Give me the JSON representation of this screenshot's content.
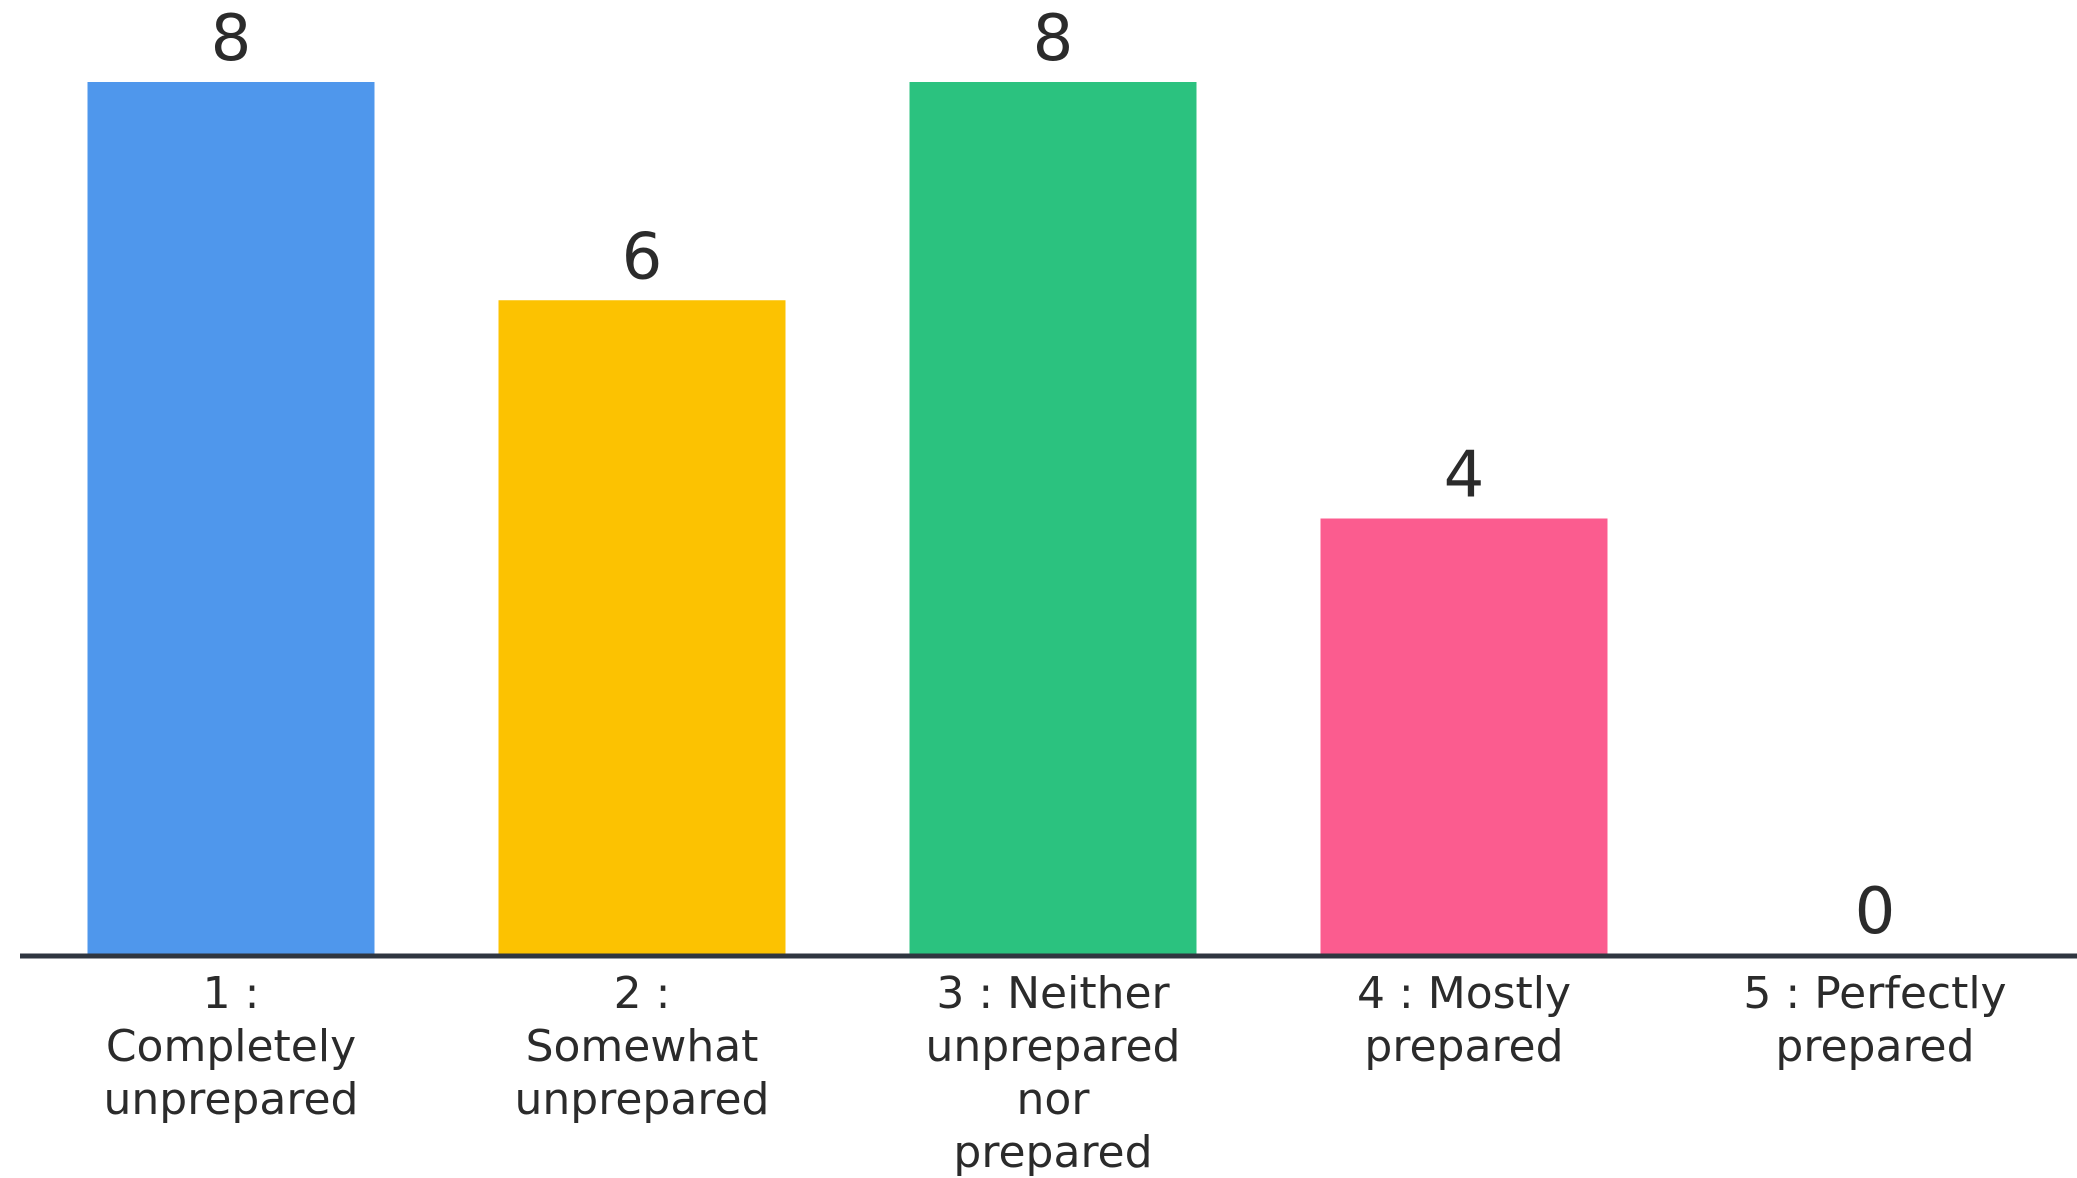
{
  "chart_data": {
    "type": "bar",
    "title": "",
    "xlabel": "",
    "ylabel": "",
    "ylim": [
      0,
      8
    ],
    "grid": false,
    "legend": "none",
    "categories": [
      [
        "1 :",
        "Completely",
        "unprepared"
      ],
      [
        "2 :",
        "Somewhat",
        "unprepared"
      ],
      [
        "3 : Neither",
        "unprepared",
        "nor",
        "prepared"
      ],
      [
        "4 : Mostly",
        "prepared"
      ],
      [
        "5 : Perfectly",
        "prepared"
      ]
    ],
    "values": [
      8,
      6,
      8,
      4,
      0
    ],
    "colors": [
      "#4f97ec",
      "#fcc201",
      "#2bc27f",
      "#fb5c8f",
      "#4f97ec"
    ]
  }
}
